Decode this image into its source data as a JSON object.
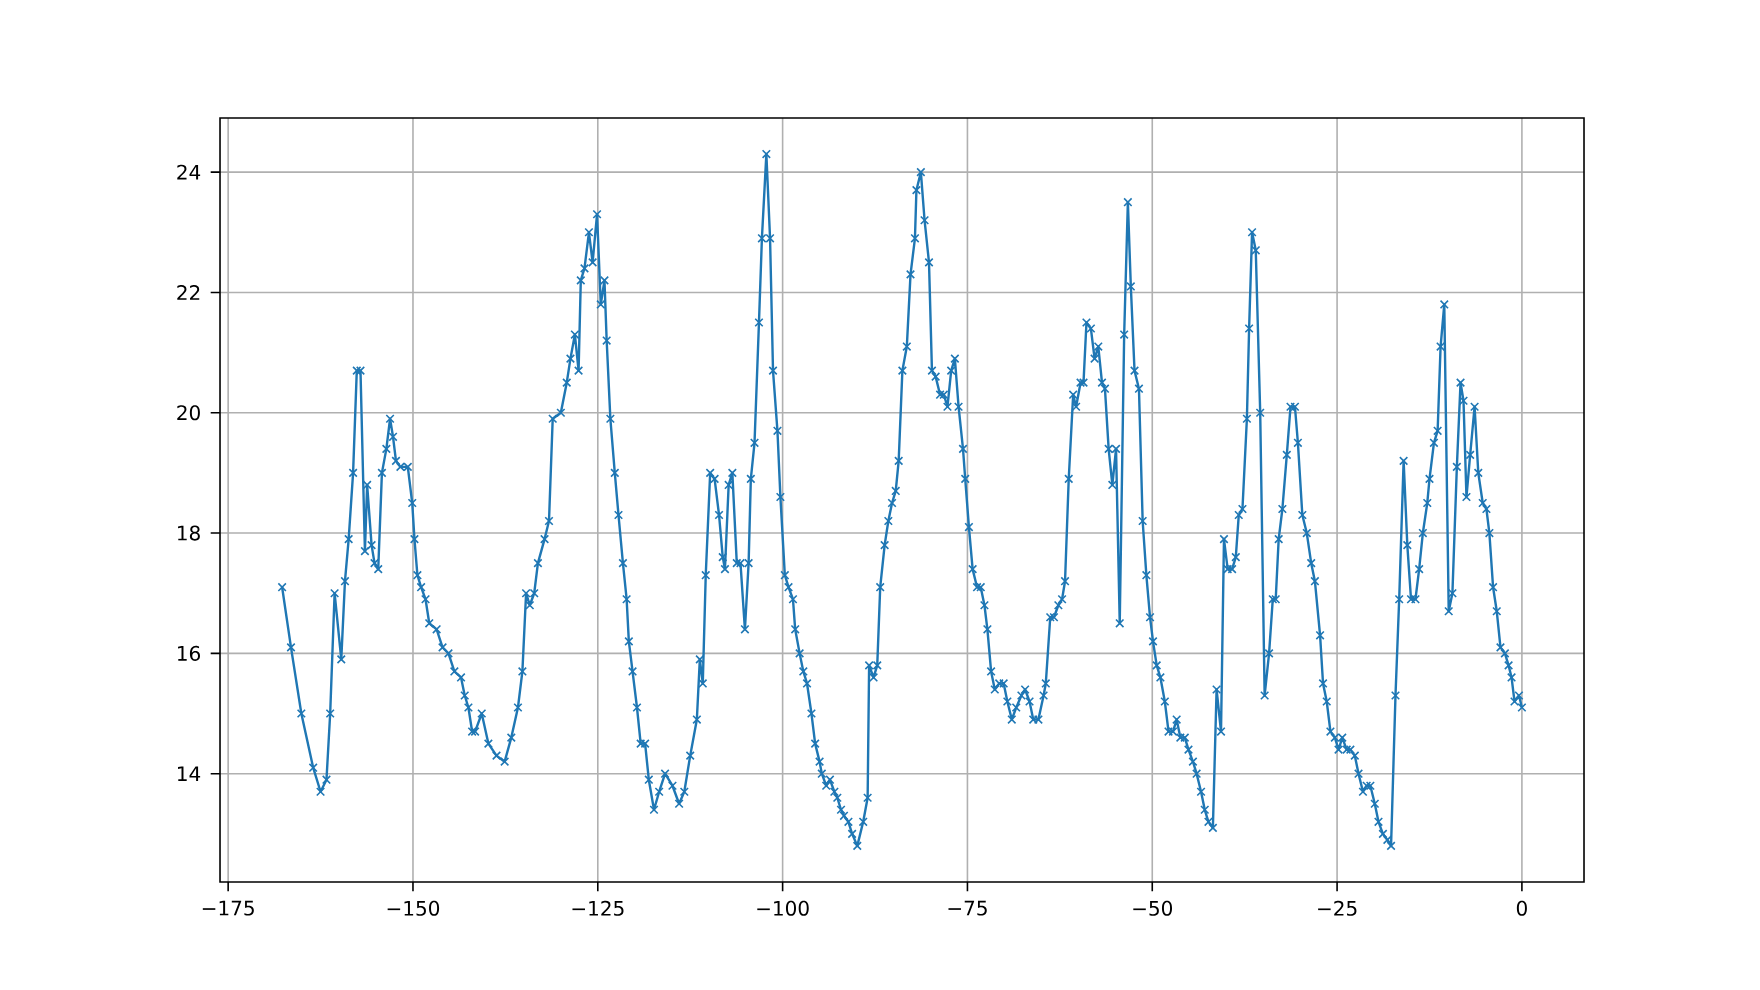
{
  "chart_data": {
    "type": "line",
    "color": "#1f77b4",
    "marker": "cross",
    "grid": true,
    "xlim": [
      -176.1,
      8.4
    ],
    "ylim": [
      12.2,
      24.9
    ],
    "xticks": [
      {
        "value": -175,
        "label": "−175"
      },
      {
        "value": -150,
        "label": "−150"
      },
      {
        "value": -125,
        "label": "−125"
      },
      {
        "value": -100,
        "label": "−100"
      },
      {
        "value": -75,
        "label": "−75"
      },
      {
        "value": -50,
        "label": "−50"
      },
      {
        "value": -25,
        "label": "−25"
      },
      0
    ],
    "yticks": [
      14,
      16,
      18,
      20,
      22,
      24
    ],
    "x": [
      -167.7,
      -166.5,
      -165.1,
      -163.5,
      -162.5,
      -161.7,
      -161.2,
      -160.6,
      -159.7,
      -159.2,
      -158.7,
      -158.1,
      -157.6,
      -157.1,
      -156.5,
      -156.2,
      -155.6,
      -155.2,
      -154.7,
      -154.2,
      -153.6,
      -153.1,
      -152.7,
      -152.3,
      -151.7,
      -150.7,
      -150.1,
      -149.8,
      -149.4,
      -148.9,
      -148.3,
      -147.8,
      -146.8,
      -146.0,
      -145.2,
      -144.4,
      -143.5,
      -143.0,
      -142.5,
      -142.0,
      -141.6,
      -140.7,
      -139.8,
      -138.7,
      -137.6,
      -136.7,
      -135.8,
      -135.2,
      -134.7,
      -134.2,
      -133.6,
      -133.1,
      -132.2,
      -131.6,
      -131.1,
      -130.0,
      -129.2,
      -128.7,
      -128.1,
      -127.6,
      -127.3,
      -126.8,
      -126.2,
      -125.7,
      -125.1,
      -124.6,
      -124.1,
      -123.8,
      -123.3,
      -122.7,
      -122.2,
      -121.6,
      -121.1,
      -120.8,
      -120.3,
      -119.7,
      -119.2,
      -118.6,
      -118.1,
      -117.4,
      -116.7,
      -115.9,
      -114.9,
      -114.0,
      -113.3,
      -112.5,
      -111.6,
      -111.2,
      -110.8,
      -110.4,
      -109.8,
      -109.2,
      -108.6,
      -108.1,
      -107.8,
      -107.3,
      -106.8,
      -106.2,
      -105.7,
      -105.1,
      -104.6,
      -104.3,
      -103.8,
      -103.2,
      -102.8,
      -102.2,
      -101.7,
      -101.3,
      -100.7,
      -100.3,
      -99.7,
      -99.2,
      -98.6,
      -98.3,
      -97.7,
      -97.2,
      -96.7,
      -96.1,
      -95.6,
      -95.0,
      -94.7,
      -94.1,
      -93.6,
      -93.0,
      -92.6,
      -92.1,
      -91.7,
      -91.1,
      -90.6,
      -89.9,
      -89.1,
      -88.5,
      -88.3,
      -87.7,
      -87.2,
      -86.8,
      -86.2,
      -85.7,
      -85.2,
      -84.7,
      -84.3,
      -83.8,
      -83.2,
      -82.7,
      -82.1,
      -81.9,
      -81.3,
      -80.8,
      -80.2,
      -79.8,
      -79.3,
      -78.7,
      -78.2,
      -77.7,
      -77.2,
      -76.7,
      -76.2,
      -75.6,
      -75.3,
      -74.8,
      -74.3,
      -73.7,
      -73.2,
      -72.7,
      -72.3,
      -71.8,
      -71.3,
      -70.7,
      -70.1,
      -69.6,
      -69.0,
      -68.4,
      -67.7,
      -67.2,
      -66.6,
      -66.1,
      -65.4,
      -64.7,
      -64.4,
      -63.8,
      -63.3,
      -62.7,
      -62.2,
      -61.8,
      -61.3,
      -60.7,
      -60.3,
      -59.7,
      -59.3,
      -58.9,
      -58.3,
      -57.8,
      -57.3,
      -56.8,
      -56.4,
      -55.9,
      -55.4,
      -54.9,
      -54.4,
      -53.8,
      -53.3,
      -52.9,
      -52.4,
      -51.8,
      -51.3,
      -50.8,
      -50.3,
      -49.9,
      -49.4,
      -48.9,
      -48.3,
      -47.8,
      -47.2,
      -46.7,
      -46.2,
      -45.6,
      -45.1,
      -44.5,
      -44.0,
      -43.4,
      -42.9,
      -42.4,
      -41.8,
      -41.3,
      -40.7,
      -40.3,
      -39.8,
      -39.2,
      -38.7,
      -38.3,
      -37.8,
      -37.2,
      -36.9,
      -36.5,
      -36.0,
      -35.4,
      -34.8,
      -34.2,
      -33.7,
      -33.3,
      -32.9,
      -32.4,
      -31.8,
      -31.3,
      -30.7,
      -30.3,
      -29.7,
      -29.1,
      -28.5,
      -28.0,
      -27.3,
      -26.9,
      -26.4,
      -25.9,
      -25.3,
      -24.8,
      -24.3,
      -23.7,
      -23.2,
      -22.6,
      -22.1,
      -21.5,
      -21.0,
      -20.5,
      -19.9,
      -19.4,
      -18.8,
      -18.2,
      -17.7,
      -17.1,
      -16.6,
      -16.0,
      -15.5,
      -15.0,
      -14.4,
      -13.9,
      -13.4,
      -12.8,
      -12.5,
      -11.9,
      -11.4,
      -11.0,
      -10.5,
      -9.9,
      -9.4,
      -8.8,
      -8.3,
      -7.9,
      -7.5,
      -7.0,
      -6.4,
      -5.9,
      -5.3,
      -4.8,
      -4.4,
      -3.9,
      -3.4,
      -2.9,
      -2.3,
      -1.8,
      -1.4,
      -1.0,
      -0.4,
      0.0
    ],
    "values": [
      17.1,
      16.1,
      15.0,
      14.1,
      13.7,
      13.9,
      15.0,
      17.0,
      15.9,
      17.2,
      17.9,
      19.0,
      20.7,
      20.7,
      17.7,
      18.8,
      17.8,
      17.5,
      17.4,
      19.0,
      19.4,
      19.9,
      19.6,
      19.2,
      19.1,
      19.1,
      18.5,
      17.9,
      17.3,
      17.1,
      16.9,
      16.5,
      16.4,
      16.1,
      16.0,
      15.7,
      15.6,
      15.3,
      15.1,
      14.7,
      14.7,
      15.0,
      14.5,
      14.3,
      14.2,
      14.6,
      15.1,
      15.7,
      17.0,
      16.8,
      17.0,
      17.5,
      17.9,
      18.2,
      19.9,
      20.0,
      20.5,
      20.9,
      21.3,
      20.7,
      22.2,
      22.4,
      23.0,
      22.5,
      23.3,
      21.8,
      22.2,
      21.2,
      19.9,
      19.0,
      18.3,
      17.5,
      16.9,
      16.2,
      15.7,
      15.1,
      14.5,
      14.5,
      13.9,
      13.4,
      13.7,
      14.0,
      13.8,
      13.5,
      13.7,
      14.3,
      14.9,
      15.9,
      15.5,
      17.3,
      19.0,
      18.9,
      18.3,
      17.6,
      17.4,
      18.8,
      19.0,
      17.5,
      17.5,
      16.4,
      17.5,
      18.9,
      19.5,
      21.5,
      22.9,
      24.3,
      22.9,
      20.7,
      19.7,
      18.6,
      17.3,
      17.1,
      16.9,
      16.4,
      16.0,
      15.7,
      15.5,
      15.0,
      14.5,
      14.2,
      14.0,
      13.8,
      13.9,
      13.7,
      13.6,
      13.4,
      13.3,
      13.2,
      13.0,
      12.8,
      13.2,
      13.6,
      15.8,
      15.6,
      15.8,
      17.1,
      17.8,
      18.2,
      18.5,
      18.7,
      19.2,
      20.7,
      21.1,
      22.3,
      22.9,
      23.7,
      24.0,
      23.2,
      22.5,
      20.7,
      20.6,
      20.3,
      20.3,
      20.1,
      20.7,
      20.9,
      20.1,
      19.4,
      18.9,
      18.1,
      17.4,
      17.1,
      17.1,
      16.8,
      16.4,
      15.7,
      15.4,
      15.5,
      15.5,
      15.2,
      14.9,
      15.1,
      15.3,
      15.4,
      15.2,
      14.9,
      14.9,
      15.3,
      15.5,
      16.6,
      16.6,
      16.8,
      16.9,
      17.2,
      18.9,
      20.3,
      20.1,
      20.5,
      20.5,
      21.5,
      21.4,
      20.9,
      21.1,
      20.5,
      20.4,
      19.4,
      18.8,
      19.4,
      16.5,
      21.3,
      23.5,
      22.1,
      20.7,
      20.4,
      18.2,
      17.3,
      16.6,
      16.2,
      15.8,
      15.6,
      15.2,
      14.7,
      14.7,
      14.9,
      14.6,
      14.6,
      14.4,
      14.2,
      14.0,
      13.7,
      13.4,
      13.2,
      13.1,
      15.4,
      14.7,
      17.9,
      17.4,
      17.4,
      17.6,
      18.3,
      18.4,
      19.9,
      21.4,
      23.0,
      22.7,
      20.0,
      15.3,
      16.0,
      16.9,
      16.9,
      17.9,
      18.4,
      19.3,
      20.1,
      20.1,
      19.5,
      18.3,
      18.0,
      17.5,
      17.2,
      16.3,
      15.5,
      15.2,
      14.7,
      14.6,
      14.4,
      14.6,
      14.4,
      14.4,
      14.3,
      14.0,
      13.7,
      13.8,
      13.8,
      13.5,
      13.2,
      13.0,
      12.9,
      12.8,
      15.3,
      16.9,
      19.2,
      17.8,
      16.9,
      16.9,
      17.4,
      18.0,
      18.5,
      18.9,
      19.5,
      19.7,
      21.1,
      21.8,
      16.7,
      17.0,
      19.1,
      20.5,
      20.2,
      18.6,
      19.3,
      20.1,
      19.0,
      18.5,
      18.4,
      18.0,
      17.1,
      16.7,
      16.1,
      16.0,
      15.8,
      15.6,
      15.2,
      15.3,
      15.1
    ]
  }
}
